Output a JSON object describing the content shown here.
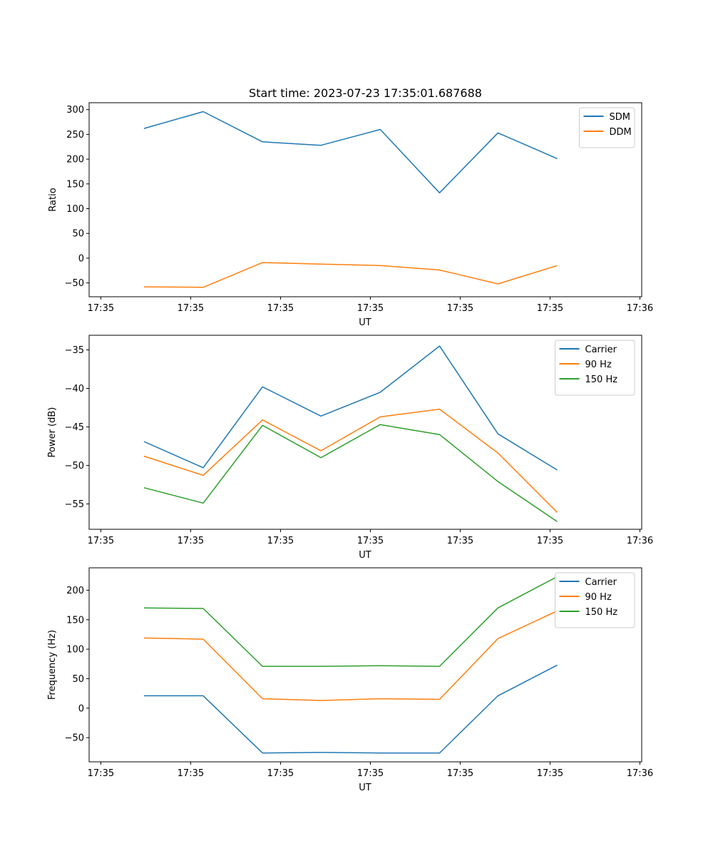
{
  "chart_data": [
    {
      "type": "line",
      "title": "Start time: 2023-07-23 17:35:01.687688",
      "xlabel": "UT",
      "ylabel": "Ratio",
      "xticks": [
        "17:35",
        "17:35",
        "17:35",
        "17:35",
        "17:35",
        "17:35",
        "17:36"
      ],
      "xtick_positions": [
        0,
        1,
        2,
        3,
        4,
        5,
        6
      ],
      "xlim": [
        -0.13,
        6.02
      ],
      "x": [
        0.48,
        1.14,
        1.8,
        2.45,
        3.11,
        3.77,
        4.42,
        5.08
      ],
      "yticks": [
        -50,
        0,
        50,
        100,
        150,
        200,
        250,
        300
      ],
      "ylim": [
        -78,
        314
      ],
      "legend": "top-right",
      "grid": false,
      "series": [
        {
          "name": "SDM",
          "color": "#1f77b4",
          "values": [
            262,
            296,
            235,
            228,
            260,
            132,
            253,
            201
          ]
        },
        {
          "name": "DDM",
          "color": "#ff7f0e",
          "values": [
            -58,
            -59,
            -9,
            -12,
            -15,
            -24,
            -52,
            -15
          ]
        }
      ]
    },
    {
      "type": "line",
      "title": "",
      "xlabel": "UT",
      "ylabel": "Power (dB)",
      "xticks": [
        "17:35",
        "17:35",
        "17:35",
        "17:35",
        "17:35",
        "17:35",
        "17:36"
      ],
      "xtick_positions": [
        0,
        1,
        2,
        3,
        4,
        5,
        6
      ],
      "xlim": [
        -0.13,
        6.02
      ],
      "x": [
        0.48,
        1.14,
        1.8,
        2.45,
        3.11,
        3.77,
        4.42,
        5.08
      ],
      "yticks": [
        -55,
        -50,
        -45,
        -40,
        -35
      ],
      "ylim": [
        -58.3,
        -33.1
      ],
      "legend": "top-right",
      "grid": false,
      "series": [
        {
          "name": "Carrier",
          "color": "#1f77b4",
          "values": [
            -46.9,
            -50.3,
            -39.8,
            -43.6,
            -40.5,
            -34.5,
            -45.9,
            -50.6
          ]
        },
        {
          "name": "90 Hz",
          "color": "#ff7f0e",
          "values": [
            -48.8,
            -51.3,
            -44.1,
            -48.1,
            -43.7,
            -42.7,
            -48.4,
            -56.1
          ]
        },
        {
          "name": "150 Hz",
          "color": "#2ca02c",
          "values": [
            -52.9,
            -54.9,
            -44.8,
            -49.0,
            -44.7,
            -46.0,
            -52.1,
            -57.3
          ]
        }
      ]
    },
    {
      "type": "line",
      "title": "",
      "xlabel": "UT",
      "ylabel": "Frequency (Hz)",
      "xticks": [
        "17:35",
        "17:35",
        "17:35",
        "17:35",
        "17:35",
        "17:35",
        "17:36"
      ],
      "xtick_positions": [
        0,
        1,
        2,
        3,
        4,
        5,
        6
      ],
      "xlim": [
        -0.13,
        6.02
      ],
      "x": [
        0.48,
        1.14,
        1.8,
        2.45,
        3.11,
        3.77,
        4.42,
        5.08
      ],
      "yticks": [
        -50,
        0,
        50,
        100,
        150,
        200
      ],
      "ylim": [
        -91,
        238
      ],
      "legend": "top-right",
      "grid": false,
      "series": [
        {
          "name": "Carrier",
          "color": "#1f77b4",
          "values": [
            21,
            21,
            -76,
            -75,
            -76,
            -76,
            21,
            73
          ]
        },
        {
          "name": "90 Hz",
          "color": "#ff7f0e",
          "values": [
            119,
            117,
            16,
            13,
            16,
            15,
            118,
            165
          ]
        },
        {
          "name": "150 Hz",
          "color": "#2ca02c",
          "values": [
            170,
            169,
            71,
            71,
            72,
            71,
            170,
            223
          ]
        }
      ]
    }
  ]
}
